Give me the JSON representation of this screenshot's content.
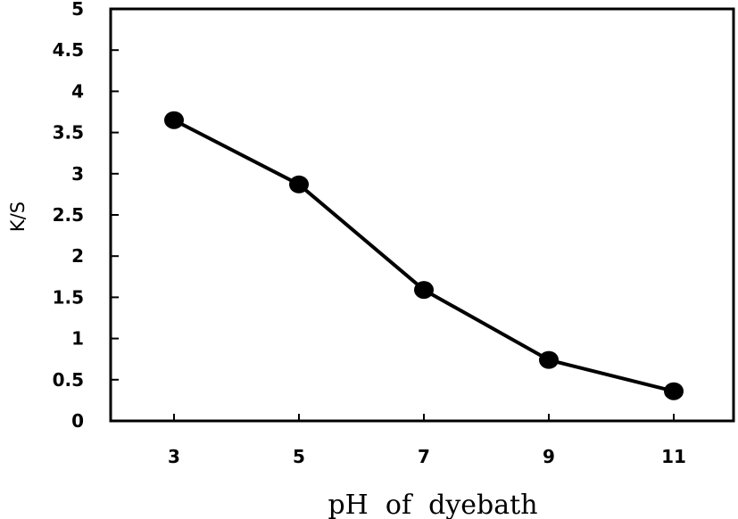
{
  "chart_data": {
    "type": "line",
    "title": "",
    "xlabel": "pH  of  dyebath",
    "ylabel": "K/S",
    "categories": [
      "3",
      "5",
      "7",
      "9",
      "11"
    ],
    "x": [
      3,
      5,
      7,
      9,
      11
    ],
    "series": [
      {
        "name": "K/S",
        "values": [
          3.65,
          2.87,
          1.59,
          0.74,
          0.36
        ],
        "color": "#000000",
        "marker": "circle"
      }
    ],
    "ylim": [
      0,
      5
    ],
    "yticks": [
      "0",
      "0.5",
      "1",
      "1.5",
      "2",
      "2.5",
      "3",
      "3.5",
      "4",
      "4.5",
      "5"
    ],
    "grid": false,
    "legend": null
  }
}
